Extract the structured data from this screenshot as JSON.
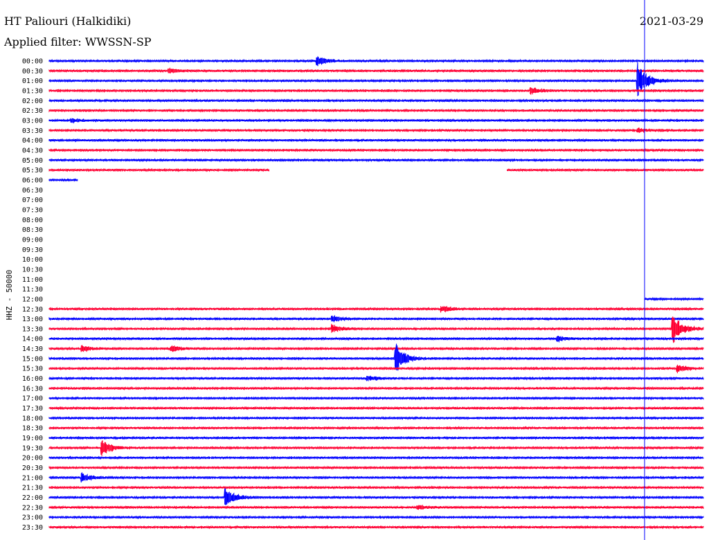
{
  "header": {
    "station": "HT Paliouri (Halkidiki)",
    "date": "2021-03-29",
    "filter": "Applied filter: WWSSN-SP"
  },
  "chart_data": {
    "type": "line",
    "ylabel": "HHZ - 50000",
    "colors": {
      "blue": "#0000ff",
      "red": "#ff0033"
    },
    "time_labels": [
      "00:00",
      "00:30",
      "01:00",
      "01:30",
      "02:00",
      "02:30",
      "03:00",
      "03:30",
      "04:00",
      "04:30",
      "05:00",
      "05:30",
      "06:00",
      "06:30",
      "07:00",
      "07:30",
      "08:00",
      "08:30",
      "09:00",
      "09:30",
      "10:00",
      "10:30",
      "11:00",
      "11:30",
      "12:00",
      "12:30",
      "13:00",
      "13:30",
      "14:00",
      "14:30",
      "15:00",
      "15:30",
      "16:00",
      "16:30",
      "17:00",
      "17:30",
      "18:00",
      "18:30",
      "19:00",
      "19:30",
      "20:00",
      "20:30",
      "21:00",
      "21:30",
      "22:00",
      "22:30",
      "23:00",
      "23:30"
    ],
    "x_range_minutes": [
      0,
      30
    ],
    "current_time_minute": 27.3,
    "data_gaps": [
      {
        "row": 5,
        "from": 0,
        "to": 0
      },
      {
        "row": 11,
        "from": 10.1,
        "to": 21.0
      },
      {
        "row": 12,
        "from": 1.3,
        "to": 30
      },
      {
        "row": 24,
        "from": 0,
        "to": 27.3
      }
    ],
    "rows_without_data": [
      13,
      14,
      15,
      16,
      17,
      18,
      19,
      20,
      21,
      22,
      23
    ],
    "events": [
      {
        "row": 0,
        "minute": 12.3,
        "amp": 8
      },
      {
        "row": 1,
        "minute": 5.5,
        "amp": 3
      },
      {
        "row": 2,
        "minute": 27.0,
        "amp": 26
      },
      {
        "row": 3,
        "minute": 22.1,
        "amp": 5
      },
      {
        "row": 6,
        "minute": 1.0,
        "amp": 3
      },
      {
        "row": 7,
        "minute": 27.0,
        "amp": 3
      },
      {
        "row": 25,
        "minute": 18.0,
        "amp": 5
      },
      {
        "row": 26,
        "minute": 13.0,
        "amp": 4
      },
      {
        "row": 27,
        "minute": 13.0,
        "amp": 6
      },
      {
        "row": 27,
        "minute": 28.6,
        "amp": 22
      },
      {
        "row": 28,
        "minute": 23.3,
        "amp": 4
      },
      {
        "row": 29,
        "minute": 1.5,
        "amp": 5
      },
      {
        "row": 29,
        "minute": 5.6,
        "amp": 5
      },
      {
        "row": 30,
        "minute": 15.9,
        "amp": 22
      },
      {
        "row": 31,
        "minute": 28.8,
        "amp": 6
      },
      {
        "row": 32,
        "minute": 14.6,
        "amp": 4
      },
      {
        "row": 39,
        "minute": 2.4,
        "amp": 12
      },
      {
        "row": 42,
        "minute": 1.5,
        "amp": 6
      },
      {
        "row": 44,
        "minute": 8.1,
        "amp": 14
      },
      {
        "row": 45,
        "minute": 16.9,
        "amp": 3
      }
    ]
  }
}
